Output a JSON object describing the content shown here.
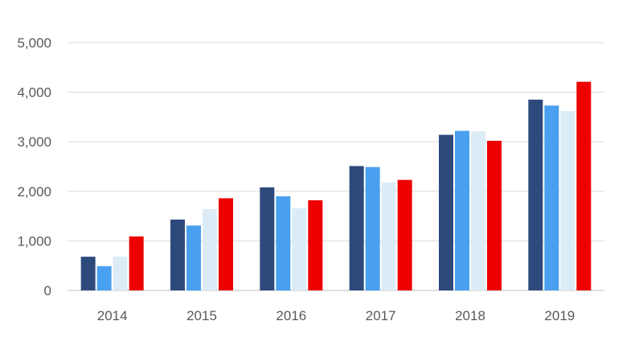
{
  "chart_data": {
    "type": "bar",
    "title": "",
    "xlabel": "",
    "ylabel": "",
    "categories": [
      "2014",
      "2015",
      "2016",
      "2017",
      "2018",
      "2019"
    ],
    "series": [
      {
        "values": [
          680,
          1430,
          2080,
          2510,
          3140,
          3850
        ],
        "color": "#2e4a7d"
      },
      {
        "values": [
          490,
          1310,
          1900,
          2490,
          3220,
          3730
        ],
        "color": "#4aa0f0"
      },
      {
        "values": [
          680,
          1640,
          1660,
          2180,
          3210,
          3620
        ],
        "color": "#dcecf7"
      },
      {
        "values": [
          1090,
          1860,
          1820,
          2230,
          3020,
          4210
        ],
        "color": "#ee0000"
      }
    ],
    "ylim": [
      0,
      5000
    ],
    "yticks": [
      0,
      1000,
      2000,
      3000,
      4000,
      5000
    ],
    "ytick_labels": [
      "0",
      "1,000",
      "2,000",
      "3,000",
      "4,000",
      "5,000"
    ],
    "grid": true,
    "legend": "none",
    "colors": {
      "grid": "#d9d9d9",
      "axis": "#bfbfbf",
      "text": "#595959"
    }
  }
}
